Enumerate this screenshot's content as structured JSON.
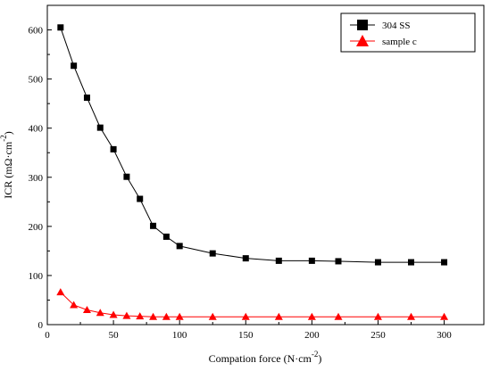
{
  "chart_data": {
    "type": "line",
    "xlabel": "Compation force (N·cm",
    "xlabel_sup": "-2",
    "xlabel_end": ")",
    "ylabel": "ICR (mΩ·cm",
    "ylabel_sup": "-2",
    "ylabel_end": ")",
    "xlim": [
      0,
      330
    ],
    "ylim": [
      0,
      650
    ],
    "xticks": [
      0,
      50,
      100,
      150,
      200,
      250,
      300
    ],
    "yticks": [
      0,
      100,
      200,
      300,
      400,
      500,
      600
    ],
    "x": [
      10,
      20,
      30,
      40,
      50,
      60,
      70,
      80,
      90,
      100,
      125,
      150,
      175,
      200,
      220,
      250,
      275,
      300
    ],
    "series": [
      {
        "name": "304 SS",
        "marker": "square",
        "color": "#000000",
        "values": [
          605,
          527,
          462,
          401,
          357,
          301,
          256,
          201,
          179,
          160,
          145,
          135,
          130,
          130,
          129,
          127,
          127,
          127
        ]
      },
      {
        "name": "sample c",
        "marker": "triangle",
        "color": "#ff0000",
        "values": [
          66,
          40,
          30,
          24,
          20,
          18,
          17,
          16,
          16,
          16,
          16,
          16,
          16,
          16,
          16,
          16,
          16,
          16
        ]
      }
    ],
    "legend_position": "top-right",
    "grid": false
  }
}
